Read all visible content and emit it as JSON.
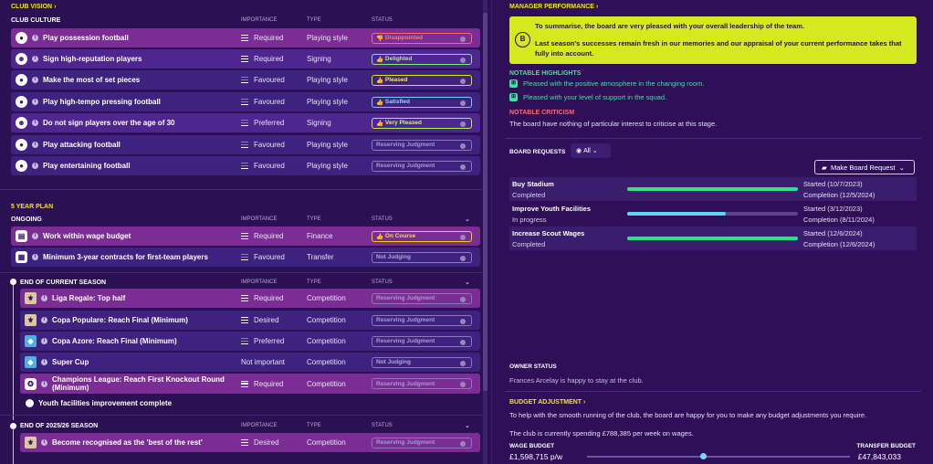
{
  "club_vision": {
    "title": "CLUB VISION",
    "club_culture_label": "CLUB CULTURE",
    "col_importance": "IMPORTANCE",
    "col_type": "TYPE",
    "col_status": "STATUS",
    "rows": [
      {
        "icon": "ball-icon",
        "text": "Play possession football",
        "importance": "Required",
        "type": "Playing style",
        "status": "Disappointed"
      },
      {
        "icon": "person-icon",
        "text": "Sign high-reputation players",
        "importance": "Required",
        "type": "Signing",
        "status": "Delighted"
      },
      {
        "icon": "ball-icon",
        "text": "Make the most of set pieces",
        "importance": "Favoured",
        "type": "Playing style",
        "status": "Pleased"
      },
      {
        "icon": "ball-icon",
        "text": "Play high-tempo pressing football",
        "importance": "Favoured",
        "type": "Playing style",
        "status": "Satisfied"
      },
      {
        "icon": "person-icon",
        "text": "Do not sign players over the age of 30",
        "importance": "Preferred",
        "type": "Signing",
        "status": "Very Pleased"
      },
      {
        "icon": "ball-icon",
        "text": "Play attacking football",
        "importance": "Favoured",
        "type": "Playing style",
        "status": "Reserving Judgment"
      },
      {
        "icon": "ball-icon",
        "text": "Play entertaining football",
        "importance": "Favoured",
        "type": "Playing style",
        "status": "Reserving Judgment"
      }
    ]
  },
  "five_year_plan": {
    "title": "5 YEAR PLAN",
    "ongoing_label": "ONGOING",
    "ongoing_rows": [
      {
        "text": "Work within wage budget",
        "importance": "Required",
        "type": "Finance",
        "status": "On Course"
      },
      {
        "text": "Minimum 3-year contracts for first-team players",
        "importance": "Favoured",
        "type": "Transfer",
        "status": "Not Judging"
      }
    ],
    "current_season_label": "END OF CURRENT SEASON",
    "current_rows": [
      {
        "text": "Liga Regale: Top half",
        "importance": "Required",
        "type": "Competition",
        "status": "Reserving Judgment"
      },
      {
        "text": "Copa Populare: Reach Final (Minimum)",
        "importance": "Desired",
        "type": "Competition",
        "status": "Reserving Judgment"
      },
      {
        "text": "Copa Azore: Reach Final (Minimum)",
        "importance": "Preferred",
        "type": "Competition",
        "status": "Reserving Judgment"
      },
      {
        "text": "Super Cup",
        "importance": "Not important",
        "type": "Competition",
        "status": "Not Judging"
      },
      {
        "text": "Champions League: Reach First Knockout Round (Minimum)",
        "importance": "Required",
        "type": "Competition",
        "status": "Reserving Judgment"
      }
    ],
    "youth_milestone": "Youth facilities improvement complete",
    "season_2025_label": "END OF 2025/26 SEASON",
    "season_2025_rows": [
      {
        "text": "Become recognised as the 'best of the rest'",
        "importance": "Desired",
        "type": "Competition",
        "status": "Reserving Judgment"
      }
    ]
  },
  "manager_performance": {
    "title": "MANAGER PERFORMANCE",
    "grade": "B",
    "summary_1": "To summarise, the board are very pleased with your overall leadership of the team.",
    "summary_2": "Last season's successes remain fresh in our memories and our appraisal of your current performance takes that fully into account.",
    "highlights_label": "NOTABLE HIGHLIGHTS",
    "highlights": [
      "Pleased with the positive atmosphere in the changing room.",
      "Pleased with your level of support in the squad."
    ],
    "criticism_label": "NOTABLE CRITICISM",
    "criticism": "The board have nothing of particular interest to criticise at this stage."
  },
  "board_requests": {
    "title": "BOARD REQUESTS",
    "filter": "All",
    "make_request": "Make Board Request",
    "items": [
      {
        "name": "Buy Stadium",
        "state": "Completed",
        "progress": 1.0,
        "started": "Started (10/7/2023)",
        "completion": "Completion (12/5/2024)",
        "color": "#2fe28a"
      },
      {
        "name": "Improve Youth Facilities",
        "state": "In progress",
        "progress": 0.58,
        "started": "Started (3/12/2023)",
        "completion": "Completion (8/11/2024)",
        "color": "#5fd6f0"
      },
      {
        "name": "Increase Scout Wages",
        "state": "Completed",
        "progress": 1.0,
        "started": "Started (12/6/2024)",
        "completion": "Completion (12/6/2024)",
        "color": "#2fe28a"
      }
    ]
  },
  "owner_status": {
    "title": "OWNER STATUS",
    "text": "Frances Arcelay is happy to stay at the club."
  },
  "budget": {
    "title": "BUDGET ADJUSTMENT",
    "text_1": "To help with the smooth running of the club, the board are happy for you to make any budget adjustments you require.",
    "text_2": "The club is currently spending £788,385 per week on wages.",
    "wage_label": "WAGE BUDGET",
    "wage_value": "£1,598,715 p/w",
    "transfer_label": "TRANSFER BUDGET",
    "transfer_value": "£47,843,033",
    "slider_position": 0.44
  }
}
